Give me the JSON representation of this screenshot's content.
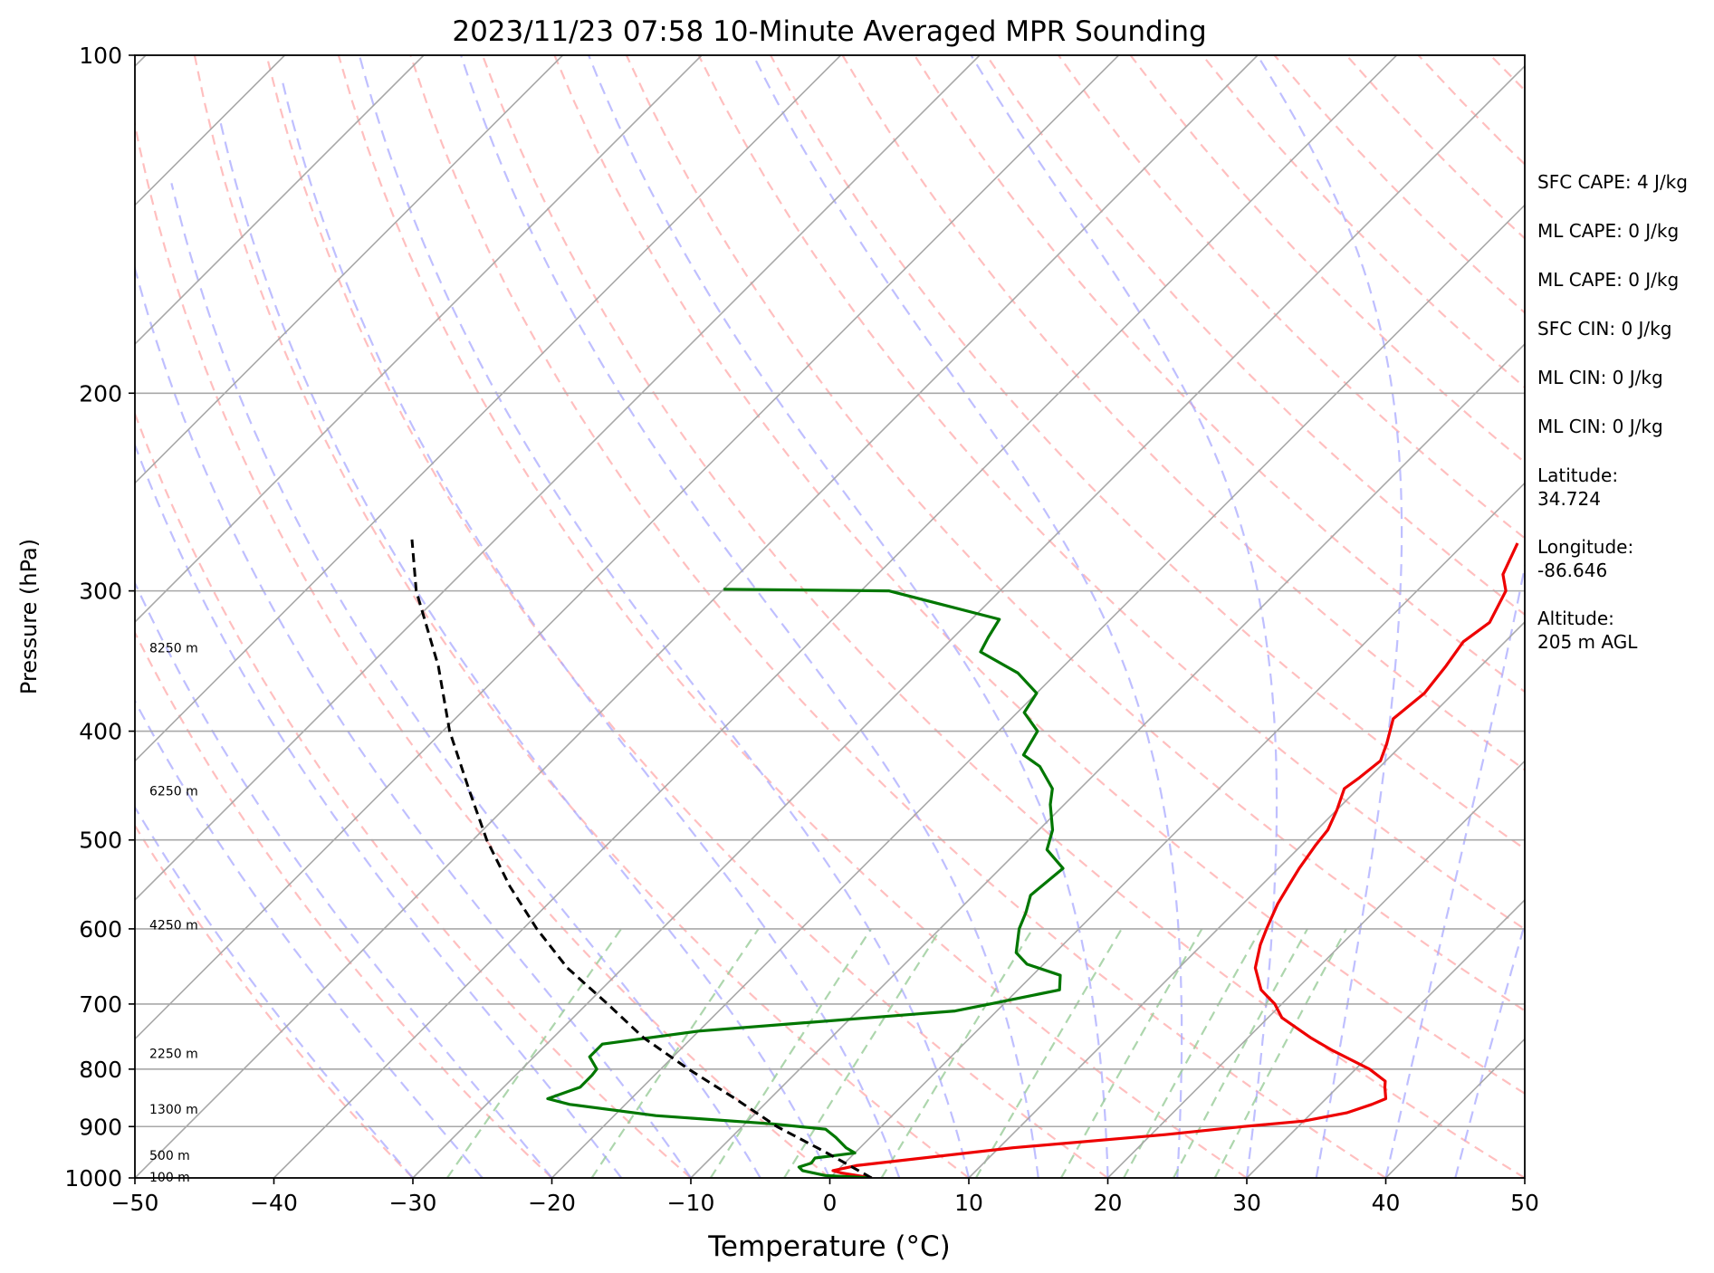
{
  "chart_data": {
    "type": "skew-t",
    "title": "2023/11/23 07:58 10-Minute Averaged MPR Sounding",
    "xlabel": "Temperature (°C)",
    "ylabel": "Pressure (hPa)",
    "xlim": [
      -50,
      50
    ],
    "ylim": [
      1000,
      100
    ],
    "y_scale": "log",
    "grid": true,
    "x_ticks": [
      "−50",
      "−40",
      "−30",
      "−20",
      "−10",
      "0",
      "10",
      "20",
      "30",
      "40",
      "50"
    ],
    "y_ticks": [
      {
        "p": 1000,
        "label": "1000"
      },
      {
        "p": 900,
        "label": "900"
      },
      {
        "p": 800,
        "label": "800"
      },
      {
        "p": 700,
        "label": "700"
      },
      {
        "p": 600,
        "label": "600"
      },
      {
        "p": 500,
        "label": "500"
      },
      {
        "p": 400,
        "label": "400"
      },
      {
        "p": 300,
        "label": "300"
      },
      {
        "p": 200,
        "label": "200"
      },
      {
        "p": 100,
        "label": "100"
      }
    ],
    "height_labels": [
      {
        "p": 998,
        "label": "100 m"
      },
      {
        "p": 955,
        "label": "500 m"
      },
      {
        "p": 868,
        "label": "1300 m"
      },
      {
        "p": 775,
        "label": "2250 m"
      },
      {
        "p": 595,
        "label": "4250 m"
      },
      {
        "p": 452,
        "label": "6250 m"
      },
      {
        "p": 337,
        "label": "8250 m"
      }
    ],
    "colors": {
      "temperature": "#ee0000",
      "dewpoint": "#007700",
      "parcel": "#000000",
      "isotherm": "#a8a8a8",
      "dry_adiabat": "#ffaaaa",
      "moist_adiabat": "#aaaaff",
      "mixing_ratio": "#99cc99"
    },
    "series": [
      {
        "key": "temperature",
        "style": "solid",
        "points": [
          [
            1000,
            3.0
          ],
          [
            990,
            0.5
          ],
          [
            985,
            -0.3
          ],
          [
            975,
            1.0
          ],
          [
            940,
            11.0
          ],
          [
            915,
            21.0
          ],
          [
            900,
            26.0
          ],
          [
            890,
            30.0
          ],
          [
            875,
            32.5
          ],
          [
            860,
            33.7
          ],
          [
            850,
            34.3
          ],
          [
            830,
            33.4
          ],
          [
            820,
            33.0
          ],
          [
            800,
            31.0
          ],
          [
            770,
            27.0
          ],
          [
            750,
            24.5
          ],
          [
            720,
            21.0
          ],
          [
            700,
            19.5
          ],
          [
            680,
            17.5
          ],
          [
            650,
            15.5
          ],
          [
            620,
            14.2
          ],
          [
            600,
            13.5
          ],
          [
            570,
            12.5
          ],
          [
            550,
            12.0
          ],
          [
            530,
            11.5
          ],
          [
            505,
            11.0
          ],
          [
            490,
            10.8
          ],
          [
            470,
            10.0
          ],
          [
            450,
            9.0
          ],
          [
            440,
            9.3
          ],
          [
            425,
            9.6
          ],
          [
            410,
            8.8
          ],
          [
            390,
            7.5
          ],
          [
            370,
            7.9
          ],
          [
            350,
            7.5
          ],
          [
            333,
            7.0
          ],
          [
            320,
            7.5
          ],
          [
            300,
            6.4
          ],
          [
            290,
            5.0
          ],
          [
            272,
            3.8
          ]
        ]
      },
      {
        "key": "dewpoint",
        "style": "solid",
        "points": [
          [
            1000,
            3.0
          ],
          [
            995,
            -0.5
          ],
          [
            985,
            -2.5
          ],
          [
            978,
            -3.0
          ],
          [
            970,
            -2.4
          ],
          [
            960,
            -2.5
          ],
          [
            950,
            0.0
          ],
          [
            940,
            -1.0
          ],
          [
            920,
            -2.5
          ],
          [
            905,
            -3.8
          ],
          [
            895,
            -8.0
          ],
          [
            880,
            -17.0
          ],
          [
            860,
            -24.0
          ],
          [
            850,
            -26.0
          ],
          [
            830,
            -24.5
          ],
          [
            810,
            -24.5
          ],
          [
            800,
            -24.6
          ],
          [
            780,
            -26.0
          ],
          [
            760,
            -26.0
          ],
          [
            740,
            -20.0
          ],
          [
            710,
            -3.0
          ],
          [
            700,
            -1.0
          ],
          [
            680,
            3.0
          ],
          [
            660,
            2.0
          ],
          [
            645,
            -1.2
          ],
          [
            630,
            -2.8
          ],
          [
            600,
            -4.3
          ],
          [
            580,
            -5.0
          ],
          [
            560,
            -5.9
          ],
          [
            530,
            -5.5
          ],
          [
            510,
            -8.0
          ],
          [
            490,
            -9.0
          ],
          [
            465,
            -11.0
          ],
          [
            450,
            -12.0
          ],
          [
            430,
            -14.5
          ],
          [
            420,
            -16.5
          ],
          [
            400,
            -17.2
          ],
          [
            385,
            -19.5
          ],
          [
            370,
            -20.0
          ],
          [
            355,
            -22.8
          ],
          [
            340,
            -27.0
          ],
          [
            330,
            -27.5
          ],
          [
            318,
            -28.0
          ],
          [
            300,
            -38.0
          ],
          [
            299,
            -50.0
          ]
        ]
      },
      {
        "key": "parcel",
        "style": "dashed",
        "points": [
          [
            1000,
            3.0
          ],
          [
            950,
            -2.0
          ],
          [
            900,
            -7.5
          ],
          [
            850,
            -12.5
          ],
          [
            800,
            -18.0
          ],
          [
            750,
            -23.5
          ],
          [
            700,
            -28.5
          ],
          [
            650,
            -34.0
          ],
          [
            600,
            -39.0
          ],
          [
            550,
            -44.0
          ],
          [
            500,
            -49.0
          ],
          [
            450,
            -54.0
          ],
          [
            400,
            -59.5
          ],
          [
            350,
            -65.0
          ],
          [
            300,
            -72.0
          ],
          [
            270,
            -76.0
          ]
        ]
      }
    ]
  },
  "stats": [
    "SFC CAPE: 4 J/kg",
    "ML CAPE: 0 J/kg",
    "ML CAPE: 0 J/kg",
    "SFC CIN: 0 J/kg",
    "ML CIN: 0 J/kg",
    "ML CIN: 0 J/kg",
    "Latitude:\n34.724",
    "Longitude:\n-86.646",
    "Altitude:\n205 m AGL"
  ]
}
